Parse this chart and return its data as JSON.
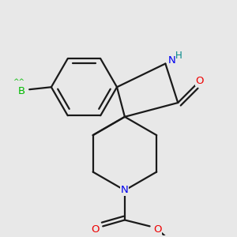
{
  "bg": "#e8e8e8",
  "bond_color": "#1a1a1a",
  "bond_lw": 1.6,
  "dbl_sep": 0.008,
  "atom_colors": {
    "B": "#00bb00",
    "N": "#0000ee",
    "O": "#ee0000",
    "H": "#008888"
  },
  "fontsize": 9.5
}
